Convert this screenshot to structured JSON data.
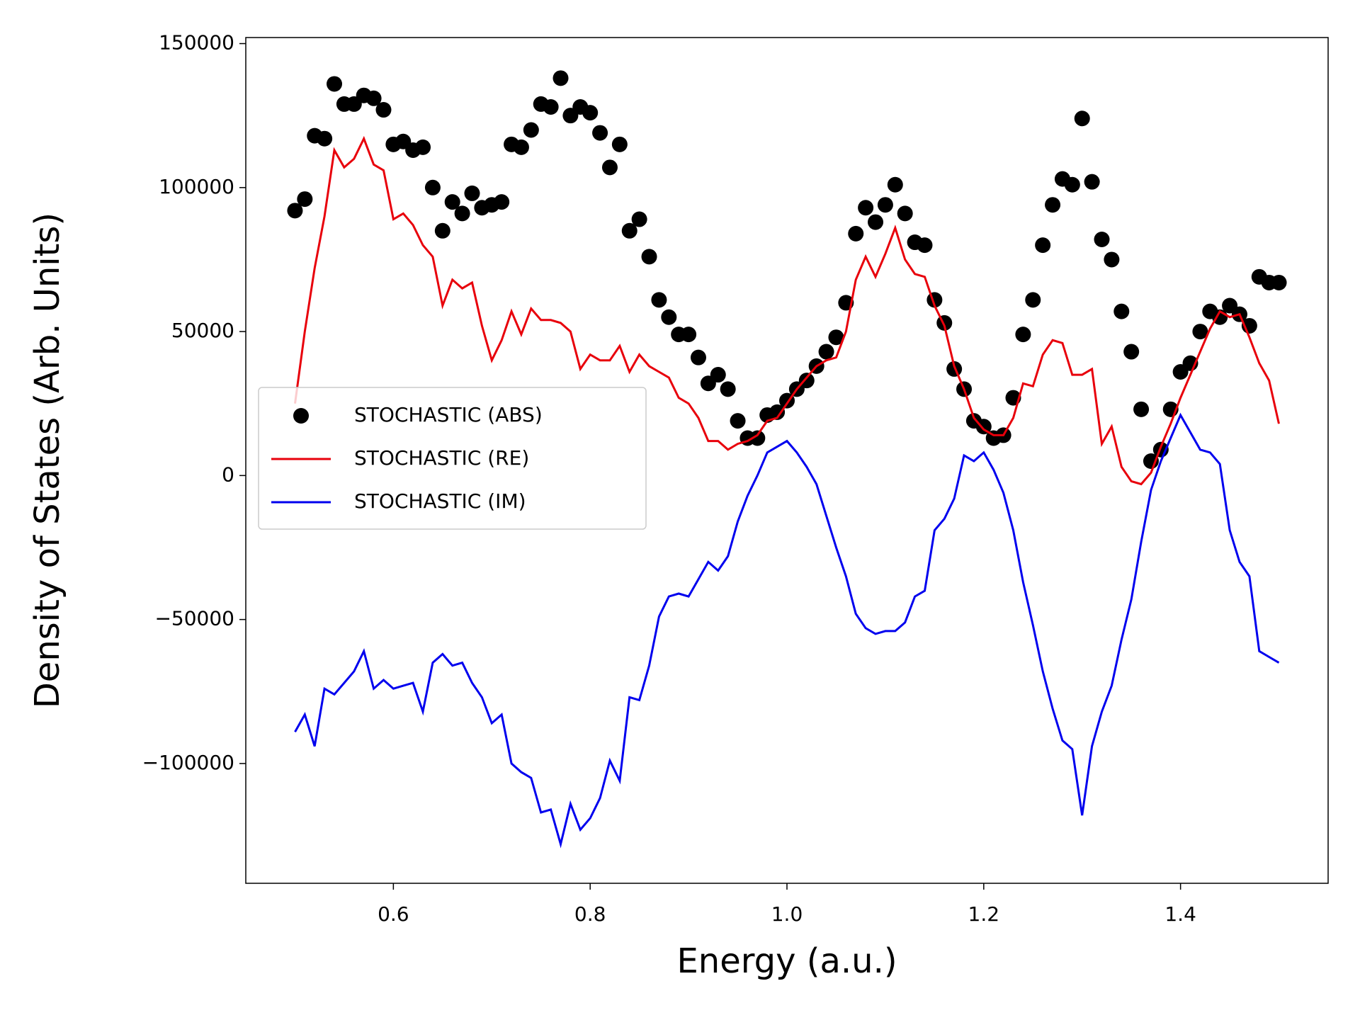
{
  "chart_data": {
    "type": "line",
    "xlabel": "Energy (a.u.)",
    "ylabel": "Density of States (Arb. Units)",
    "x": [
      0.5,
      0.51,
      0.52,
      0.53,
      0.54,
      0.55,
      0.56,
      0.57,
      0.58,
      0.59,
      0.6,
      0.61,
      0.62,
      0.63,
      0.64,
      0.65,
      0.66,
      0.67,
      0.68,
      0.69,
      0.7,
      0.71,
      0.72,
      0.73,
      0.74,
      0.75,
      0.76,
      0.77,
      0.78,
      0.79,
      0.8,
      0.81,
      0.82,
      0.83,
      0.84,
      0.85,
      0.86,
      0.87,
      0.88,
      0.89,
      0.9,
      0.91,
      0.92,
      0.93,
      0.94,
      0.95,
      0.96,
      0.97,
      0.98,
      0.99,
      1.0,
      1.01,
      1.02,
      1.03,
      1.04,
      1.05,
      1.06,
      1.07,
      1.08,
      1.09,
      1.1,
      1.11,
      1.12,
      1.13,
      1.14,
      1.15,
      1.16,
      1.17,
      1.18,
      1.19,
      1.2,
      1.21,
      1.22,
      1.23,
      1.24,
      1.25,
      1.26,
      1.27,
      1.28,
      1.29,
      1.3,
      1.31,
      1.32,
      1.33,
      1.34,
      1.35,
      1.36,
      1.37,
      1.38,
      1.39,
      1.4,
      1.41,
      1.42,
      1.43,
      1.44,
      1.45,
      1.46,
      1.47,
      1.48,
      1.49,
      1.5
    ],
    "series": [
      {
        "name": "STOCHASTIC (ABS)",
        "color": "#000000",
        "style": "marker",
        "values": [
          92000,
          96000,
          118000,
          117000,
          136000,
          129000,
          129000,
          132000,
          131000,
          127000,
          115000,
          116000,
          113000,
          114000,
          100000,
          85000,
          95000,
          91000,
          98000,
          93000,
          94000,
          95000,
          115000,
          114000,
          120000,
          129000,
          128000,
          138000,
          125000,
          128000,
          126000,
          119000,
          107000,
          115000,
          85000,
          89000,
          76000,
          61000,
          55000,
          49000,
          49000,
          41000,
          32000,
          35000,
          30000,
          19000,
          13000,
          13000,
          21000,
          22000,
          26000,
          30000,
          33000,
          38000,
          43000,
          48000,
          60000,
          84000,
          93000,
          88000,
          94000,
          101000,
          91000,
          81000,
          80000,
          61000,
          53000,
          37000,
          30000,
          19000,
          17000,
          13000,
          14000,
          27000,
          49000,
          61000,
          80000,
          94000,
          103000,
          101000,
          124000,
          102000,
          82000,
          75000,
          57000,
          43000,
          23000,
          5000,
          9000,
          23000,
          36000,
          39000,
          50000,
          57000,
          55000,
          59000,
          56000,
          52000,
          69000,
          67000,
          67000
        ]
      },
      {
        "name": "STOCHASTIC (RE)",
        "color": "#e8000b",
        "style": "line",
        "values": [
          25000,
          50000,
          72000,
          90000,
          113000,
          107000,
          110000,
          117000,
          108000,
          106000,
          89000,
          91000,
          87000,
          80000,
          76000,
          59000,
          68000,
          65000,
          67000,
          52000,
          40000,
          47000,
          57000,
          49000,
          58000,
          54000,
          54000,
          53000,
          50000,
          37000,
          42000,
          40000,
          40000,
          45000,
          36000,
          42000,
          38000,
          36000,
          34000,
          27000,
          25000,
          20000,
          12000,
          12000,
          9000,
          11000,
          12000,
          14000,
          19000,
          20000,
          25000,
          30000,
          34000,
          38000,
          40000,
          41000,
          50000,
          68000,
          76000,
          69000,
          77000,
          86000,
          75000,
          70000,
          69000,
          59000,
          52000,
          38000,
          30000,
          20000,
          16000,
          14000,
          14000,
          20000,
          32000,
          31000,
          42000,
          47000,
          46000,
          35000,
          35000,
          37000,
          11000,
          17000,
          3000,
          -2000,
          -3000,
          1000,
          10000,
          18000,
          27000,
          35000,
          43000,
          51000,
          57000,
          55000,
          56000,
          48000,
          39000,
          33000,
          18000
        ]
      },
      {
        "name": "STOCHASTIC (IM)",
        "color": "#0000ee",
        "style": "line",
        "values": [
          -89000,
          -83000,
          -94000,
          -74000,
          -76000,
          -72000,
          -68000,
          -61000,
          -74000,
          -71000,
          -74000,
          -73000,
          -72000,
          -82000,
          -65000,
          -62000,
          -66000,
          -65000,
          -72000,
          -77000,
          -86000,
          -83000,
          -100000,
          -103000,
          -105000,
          -117000,
          -116000,
          -128000,
          -114000,
          -123000,
          -119000,
          -112000,
          -99000,
          -106000,
          -77000,
          -78000,
          -66000,
          -49000,
          -42000,
          -41000,
          -42000,
          -36000,
          -30000,
          -33000,
          -28000,
          -16000,
          -7000,
          0,
          8000,
          10000,
          12000,
          8000,
          3000,
          -3000,
          -14000,
          -25000,
          -35000,
          -48000,
          -53000,
          -55000,
          -54000,
          -54000,
          -51000,
          -42000,
          -40000,
          -19000,
          -15000,
          -8000,
          7000,
          5000,
          8000,
          2000,
          -6000,
          -19000,
          -37000,
          -52000,
          -68000,
          -81000,
          -92000,
          -95000,
          -118000,
          -94000,
          -82000,
          -73000,
          -57000,
          -43000,
          -23000,
          -5000,
          5000,
          13000,
          21000,
          15000,
          9000,
          8000,
          4000,
          -19000,
          -30000,
          -35000,
          -61000,
          -63000,
          -65000
        ]
      }
    ],
    "xlim": [
      0.45,
      1.55
    ],
    "ylim": [
      -141600,
      152100
    ],
    "xticks": [
      0.6,
      0.8,
      {
        "value": 1.0,
        "label": "1.0"
      },
      1.2,
      1.4
    ],
    "yticks": [
      {
        "value": -100000,
        "label": "−100000"
      },
      {
        "value": -50000,
        "label": "−50000"
      },
      0,
      50000,
      100000,
      150000
    ],
    "legend": "center left"
  }
}
